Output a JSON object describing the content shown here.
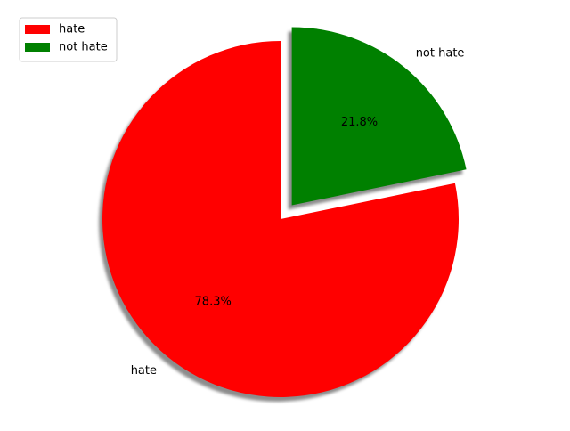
{
  "chart_data": {
    "type": "pie",
    "labels": [
      "hate",
      "not hate"
    ],
    "values": [
      78.3,
      21.8
    ],
    "pct_labels": [
      "78.3%",
      "21.8%"
    ],
    "colors": [
      "#ff0000",
      "#008000"
    ],
    "explode": [
      0,
      0.1
    ],
    "shadow": true,
    "start_angle_deg": 90,
    "legend": {
      "position": "upper-left",
      "entries": [
        "hate",
        "not hate"
      ]
    }
  }
}
